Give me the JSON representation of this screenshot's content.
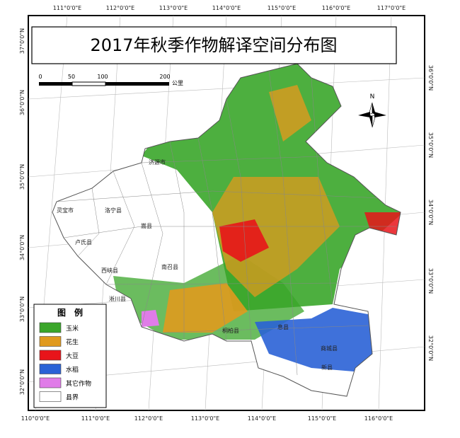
{
  "title": "2017年秋季作物解译空间分布图",
  "graticule": {
    "top": [
      "111°0'0\"E",
      "112°0'0\"E",
      "113°0'0\"E",
      "114°0'0\"E",
      "115°0'0\"E",
      "116°0'0\"E",
      "117°0'0\"E"
    ],
    "bottom": [
      "110°0'0\"E",
      "111°0'0\"E",
      "112°0'0\"E",
      "113°0'0\"E",
      "114°0'0\"E",
      "115°0'0\"E",
      "116°0'0\"E"
    ],
    "left": [
      "37°0'0\"N",
      "36°0'0\"N",
      "35°0'0\"N",
      "34°0'0\"N",
      "33°0'0\"N",
      "32°0'0\"N"
    ],
    "right": [
      "36°0'0\"N",
      "35°0'0\"N",
      "34°0'0\"N",
      "33°0'0\"N",
      "32°0'0\"N"
    ]
  },
  "scale_bar": {
    "labels": [
      "0",
      "50",
      "100",
      "200"
    ],
    "unit": "公里"
  },
  "north_arrow": "N",
  "legend": {
    "title": "图　例",
    "items": [
      {
        "label": "玉米",
        "color": "#3aa62a"
      },
      {
        "label": "花生",
        "color": "#e09a1e"
      },
      {
        "label": "大豆",
        "color": "#e8141a"
      },
      {
        "label": "水稻",
        "color": "#2a62d6"
      },
      {
        "label": "其它作物",
        "color": "#e07ce8"
      },
      {
        "label": "县界",
        "color": "#ffffff"
      }
    ]
  },
  "counties": [
    "灵宝市",
    "卢氏县",
    "洛宁县",
    "嵩县",
    "西峡县",
    "淅川县",
    "南召县",
    "桐柏县",
    "息县",
    "商城县",
    "新县",
    "济源市"
  ]
}
